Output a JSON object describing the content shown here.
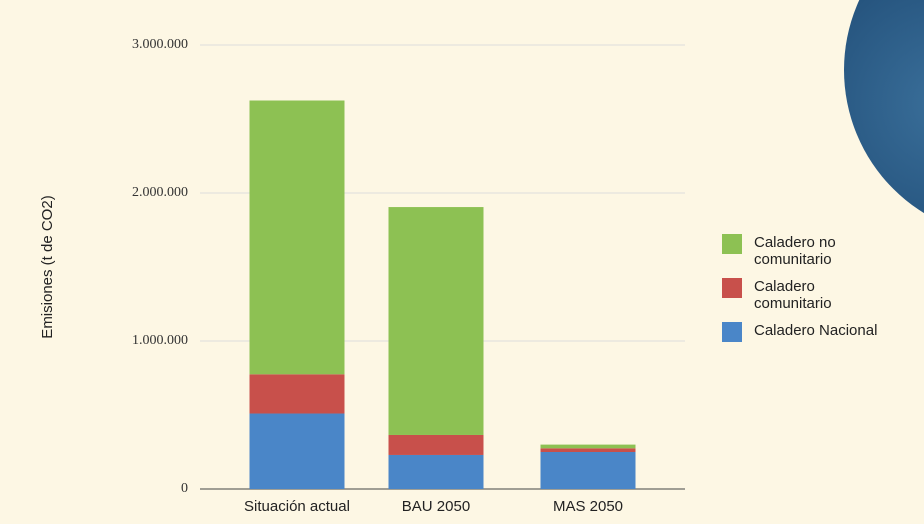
{
  "chart_data": {
    "type": "stacked_bar",
    "y_label": "Emisiones (t de CO2)",
    "categories": [
      "Situación actual",
      "BAU 2050",
      "MAS 2050"
    ],
    "series": [
      {
        "name": "Caladero Nacional",
        "color": "#4a86c8",
        "values": [
          510000,
          230000,
          250000
        ]
      },
      {
        "name": "Caladero comunitario",
        "color": "#c8504b",
        "values": [
          265000,
          135000,
          25000
        ]
      },
      {
        "name": "Caladero no comunitario",
        "color": "#8dc153",
        "values": [
          1850000,
          1540000,
          25000
        ]
      }
    ],
    "ylim": [
      0,
      3000000
    ],
    "yticks": [
      0,
      {
        "value": 1000000,
        "label": "1.000.000"
      },
      {
        "value": 2000000,
        "label": "2.000.000"
      },
      {
        "value": 3000000,
        "label": "3.000.000"
      }
    ],
    "grid": true,
    "legend": "right"
  }
}
